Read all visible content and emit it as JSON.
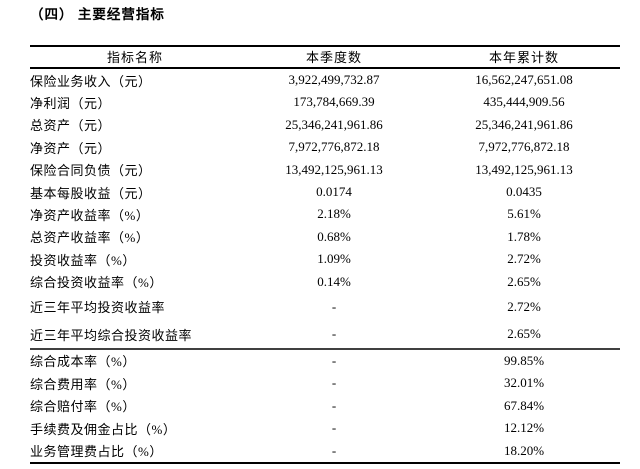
{
  "page": {
    "title": "（四） 主要经营指标"
  },
  "table": {
    "headers": {
      "name": "指标名称",
      "quarter": "本季度数",
      "ytd": "本年累计数"
    },
    "sections": [
      {
        "rows": [
          {
            "label": "保险业务收入（元）",
            "quarter": "3,922,499,732.87",
            "ytd": "16,562,247,651.08"
          },
          {
            "label": "净利润（元）",
            "quarter": "173,784,669.39",
            "ytd": "435,444,909.56"
          },
          {
            "label": "总资产（元）",
            "quarter": "25,346,241,961.86",
            "ytd": "25,346,241,961.86"
          },
          {
            "label": "净资产（元）",
            "quarter": "7,972,776,872.18",
            "ytd": "7,972,776,872.18"
          },
          {
            "label": "保险合同负债（元）",
            "quarter": "13,492,125,961.13",
            "ytd": "13,492,125,961.13"
          },
          {
            "label": "基本每股收益（元）",
            "quarter": "0.0174",
            "ytd": "0.0435"
          },
          {
            "label": "净资产收益率（%）",
            "quarter": "2.18%",
            "ytd": "5.61%"
          },
          {
            "label": "总资产收益率（%）",
            "quarter": "0.68%",
            "ytd": "1.78%"
          },
          {
            "label": "投资收益率（%）",
            "quarter": "1.09%",
            "ytd": "2.72%"
          },
          {
            "label": "综合投资收益率（%）",
            "quarter": "0.14%",
            "ytd": "2.65%"
          },
          {
            "label": "近三年平均投资收益率",
            "quarter": "-",
            "ytd": "2.72%"
          },
          {
            "label": "近三年平均综合投资收益率",
            "quarter": "-",
            "ytd": "2.65%"
          }
        ]
      },
      {
        "rows": [
          {
            "label": "综合成本率（%）",
            "quarter": "-",
            "ytd": "99.85%"
          },
          {
            "label": "综合费用率（%）",
            "quarter": "-",
            "ytd": "32.01%"
          },
          {
            "label": "综合赔付率（%）",
            "quarter": "-",
            "ytd": "67.84%"
          },
          {
            "label": "手续费及佣金占比（%）",
            "quarter": "-",
            "ytd": "12.12%"
          },
          {
            "label": "业务管理费占比（%）",
            "quarter": "-",
            "ytd": "18.20%"
          }
        ]
      }
    ]
  }
}
